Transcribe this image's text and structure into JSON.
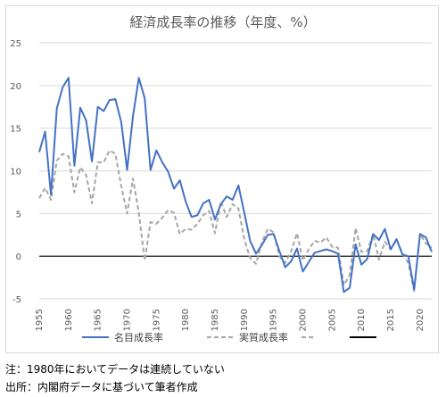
{
  "notes": {
    "note": "注：1980年においてデータは連続していない",
    "source": "出所：内閣府データに基づいて筆者作成"
  },
  "chart_data": {
    "type": "line",
    "title": "経済成長率の推移（年度、%）",
    "xlabel": "",
    "ylabel": "",
    "x": [
      1955,
      1956,
      1957,
      1958,
      1959,
      1960,
      1961,
      1962,
      1963,
      1964,
      1965,
      1966,
      1967,
      1968,
      1969,
      1970,
      1971,
      1972,
      1973,
      1974,
      1975,
      1976,
      1977,
      1978,
      1979,
      1980,
      1981,
      1982,
      1983,
      1984,
      1985,
      1986,
      1987,
      1988,
      1989,
      1990,
      1991,
      1992,
      1993,
      1994,
      1995,
      1996,
      1997,
      1998,
      1999,
      2000,
      2001,
      2002,
      2003,
      2004,
      2005,
      2006,
      2007,
      2008,
      2009,
      2010,
      2011,
      2012,
      2013,
      2014,
      2015,
      2016,
      2017,
      2018,
      2019,
      2020,
      2021,
      2022
    ],
    "x_ticks": [
      1955,
      1960,
      1965,
      1970,
      1975,
      1980,
      1985,
      1990,
      1995,
      2000,
      2005,
      2010,
      2015,
      2020
    ],
    "ylim": [
      -5,
      25
    ],
    "y_ticks": [
      -5,
      0,
      5,
      10,
      15,
      20,
      25
    ],
    "grid": "horizontal",
    "legend_position": "bottom",
    "series": [
      {
        "name": "名目成長率",
        "style": "solid",
        "color": "#4472c4",
        "values": [
          12.2,
          14.6,
          7.2,
          17.3,
          19.8,
          20.9,
          10.6,
          17.4,
          15.9,
          11.1,
          17.5,
          17.0,
          18.3,
          18.4,
          15.7,
          10.1,
          16.4,
          20.9,
          18.5,
          10.1,
          12.4,
          11.0,
          9.9,
          7.9,
          8.9,
          6.4,
          4.6,
          4.8,
          6.2,
          6.6,
          4.3,
          6.1,
          7.0,
          6.6,
          8.3,
          5.1,
          1.8,
          0.3,
          1.3,
          2.5,
          2.6,
          0.6,
          -1.3,
          -0.6,
          0.9,
          -1.8,
          -0.7,
          0.4,
          0.6,
          0.8,
          0.6,
          0.3,
          -4.2,
          -3.7,
          1.4,
          -1.0,
          -0.3,
          2.6,
          1.9,
          3.2,
          0.8,
          2.0,
          0.2,
          0.0,
          -3.9,
          2.6,
          2.2,
          0.5
        ]
      },
      {
        "name": "実質成長率",
        "style": "dashed",
        "color": "#a6a6a6",
        "values": [
          6.8,
          8.0,
          6.6,
          11.2,
          12.0,
          11.7,
          7.5,
          10.4,
          9.5,
          6.2,
          11.0,
          11.0,
          12.4,
          12.0,
          8.2,
          5.0,
          9.1,
          5.1,
          -0.5,
          4.0,
          3.8,
          4.5,
          5.4,
          5.1,
          2.6,
          3.2,
          3.1,
          3.8,
          4.8,
          5.3,
          2.7,
          6.4,
          4.6,
          6.1,
          5.6,
          2.0,
          -0.2,
          -0.9,
          1.6,
          3.2,
          2.8,
          0.0,
          -0.8,
          0.6,
          2.7,
          -0.5,
          0.8,
          1.8,
          1.6,
          2.2,
          1.1,
          1.0,
          -3.4,
          -2.2,
          3.3,
          0.5,
          0.6,
          2.6,
          -0.4,
          1.7,
          0.8,
          1.9,
          0.3,
          -0.8,
          -4.1,
          2.6,
          1.5,
          1.0
        ]
      }
    ],
    "legend": [
      {
        "label": "名目成長率",
        "style": "solid",
        "color": "#4472c4"
      },
      {
        "label": "実質成長率",
        "style": "dashed",
        "color": "#a6a6a6"
      },
      {
        "label": "",
        "style": "solid",
        "color": "#000000"
      }
    ]
  }
}
